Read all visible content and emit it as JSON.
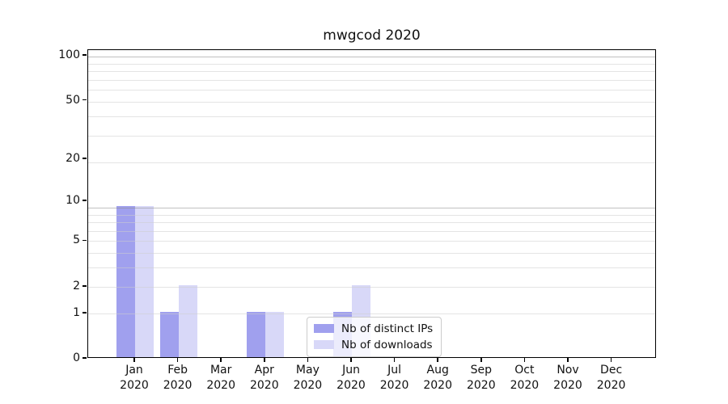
{
  "chart_data": {
    "type": "bar",
    "title": "mwgcod 2020",
    "xlabel": "",
    "ylabel": "",
    "categories_month": [
      "Jan",
      "Feb",
      "Mar",
      "Apr",
      "May",
      "Jun",
      "Jul",
      "Aug",
      "Sep",
      "Oct",
      "Nov",
      "Dec"
    ],
    "categories_year": "2020",
    "series": [
      {
        "name": "Nb of distinct IPs",
        "color": "#a0a0ee",
        "values": [
          9,
          1,
          0,
          1,
          0,
          1,
          0,
          0,
          0,
          0,
          0,
          0
        ]
      },
      {
        "name": "Nb of downloads",
        "color": "#d8d8f8",
        "values": [
          9,
          2,
          0,
          1,
          0,
          2,
          0,
          0,
          0,
          0,
          0,
          0
        ]
      }
    ],
    "y_axis": {
      "scale": "log10(value+1)",
      "tick_values": [
        0,
        1,
        2,
        5,
        10,
        20,
        50,
        100
      ]
    },
    "grid": "horizontal, major and minor, drawn above bars",
    "legend_entries": [
      "Nb of distinct IPs",
      "Nb of downloads"
    ]
  }
}
